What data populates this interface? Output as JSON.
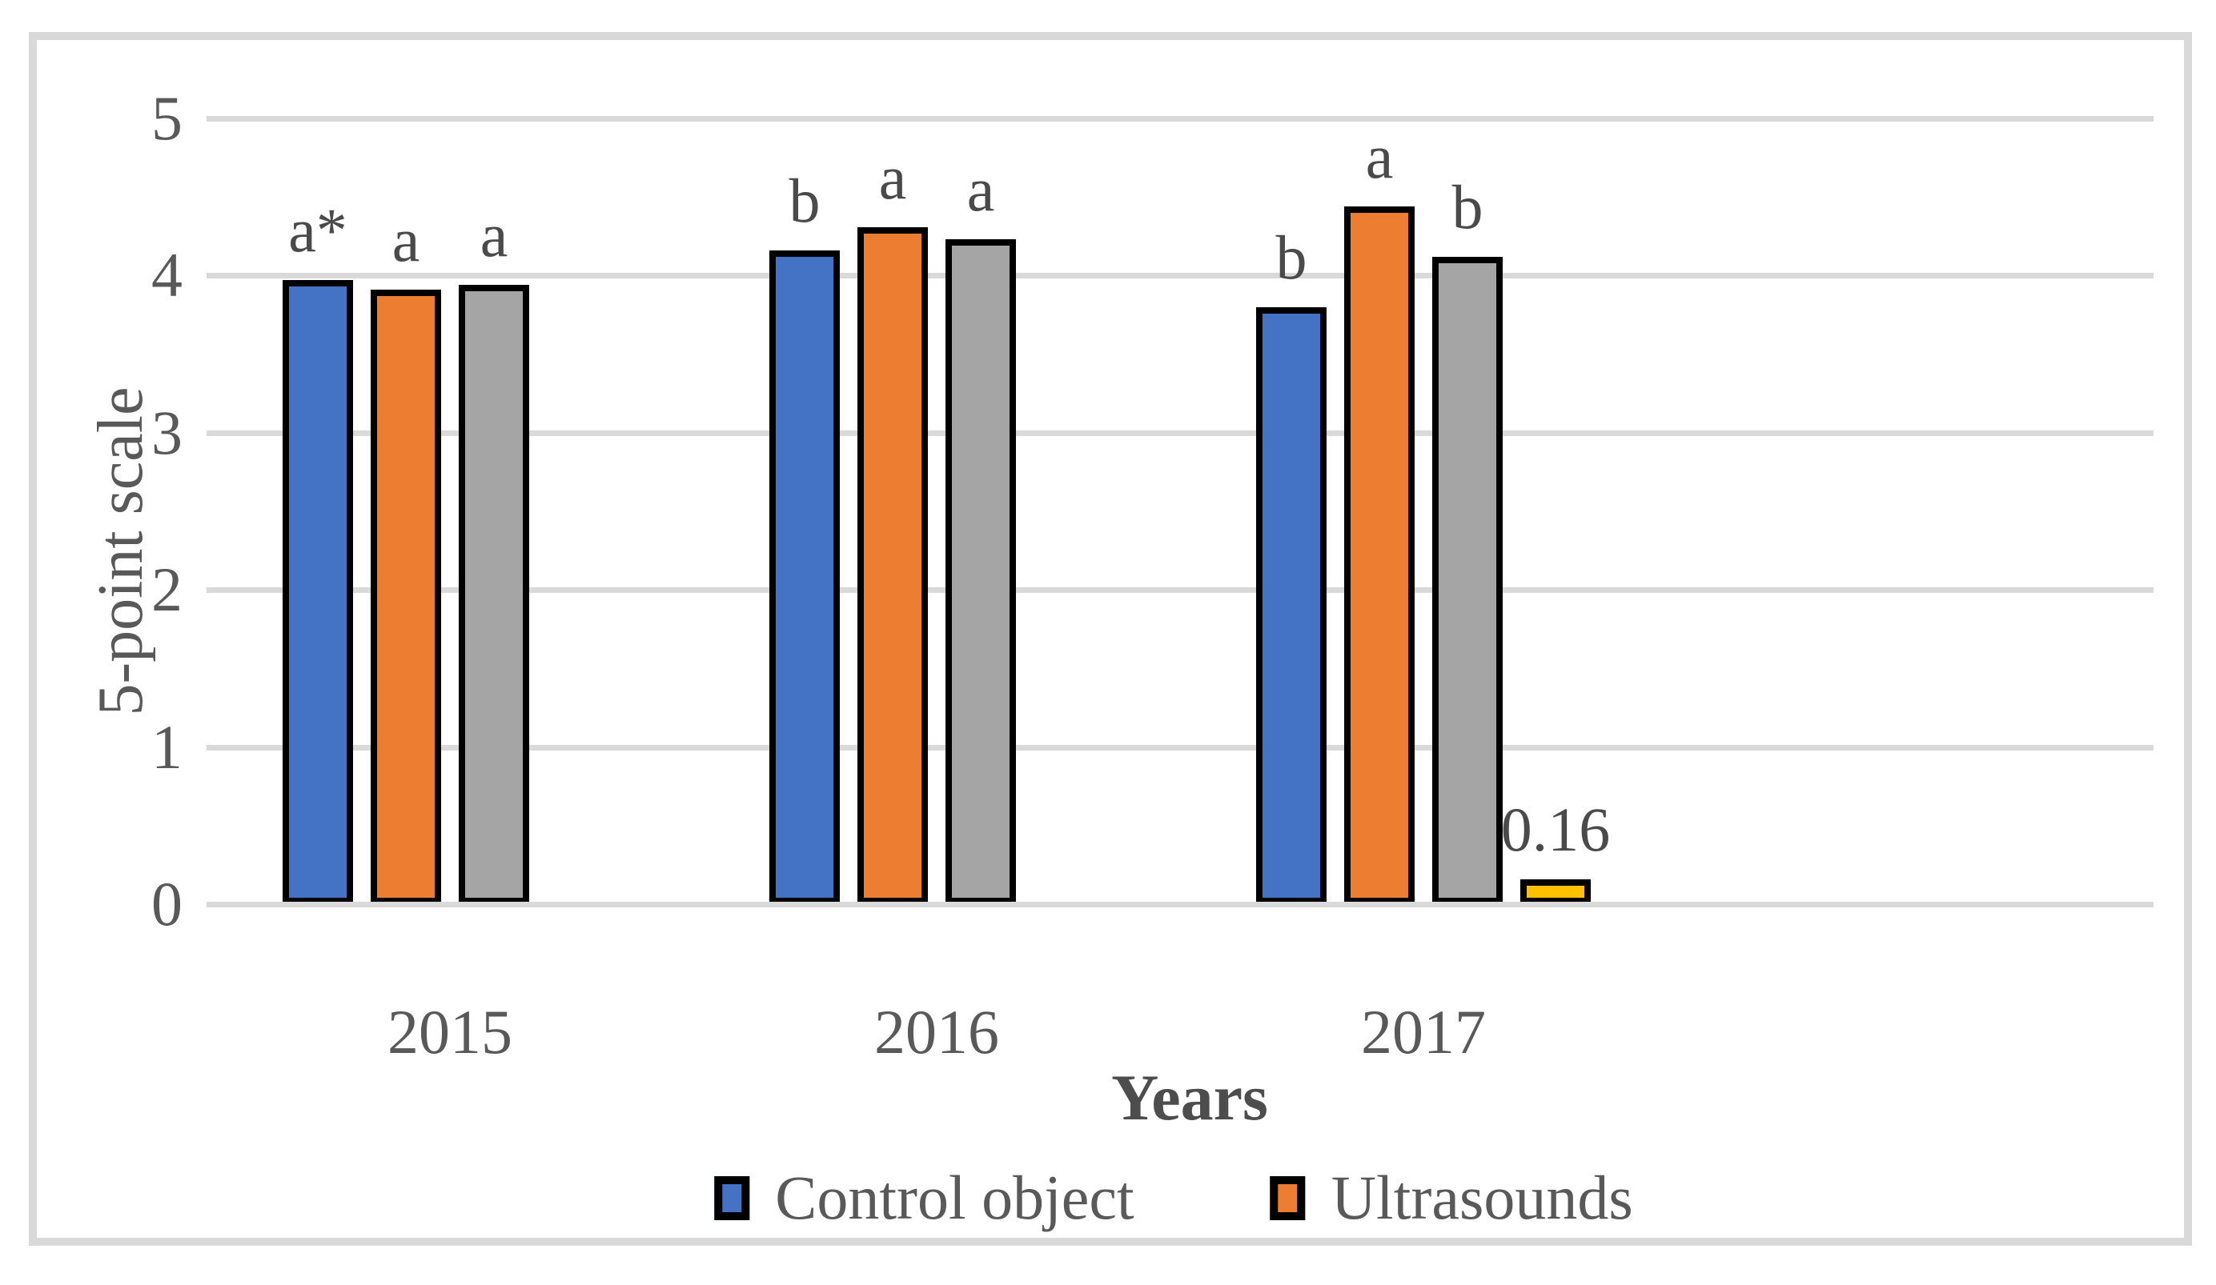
{
  "chart_data": {
    "type": "bar",
    "xlabel": "Years",
    "ylabel": "5-point scale",
    "ylim": [
      0,
      5
    ],
    "yticks": [
      0,
      1,
      2,
      3,
      4,
      5
    ],
    "categories": [
      "2015",
      "2016",
      "2017"
    ],
    "series": [
      {
        "name": "Control object",
        "color": "#4472C4",
        "values": [
          3.97,
          4.16,
          3.8
        ],
        "annotations": [
          "a*",
          "b",
          "b"
        ]
      },
      {
        "name": "Ultrasounds",
        "color": "#ED7D31",
        "values": [
          3.91,
          4.31,
          4.44
        ],
        "annotations": [
          "a",
          "a",
          "a"
        ]
      },
      {
        "color": "#A5A5A5",
        "values": [
          3.94,
          4.23,
          4.12
        ],
        "annotations": [
          "a",
          "a",
          "b"
        ]
      },
      {
        "color": "#FFC000",
        "values": [
          null,
          null,
          0.16
        ],
        "annotations": [
          null,
          null,
          "0.16"
        ]
      }
    ],
    "legend": [
      {
        "label": "Control object",
        "color": "#4472C4"
      },
      {
        "label": "Ultrasounds",
        "color": "#ED7D31"
      }
    ],
    "grid": true,
    "legend_position": "bottom",
    "frame_color": "#D9D9D9",
    "gridline_color": "#D9D9D9",
    "bar_outline_color": "#000000",
    "text_color": "#595959"
  }
}
